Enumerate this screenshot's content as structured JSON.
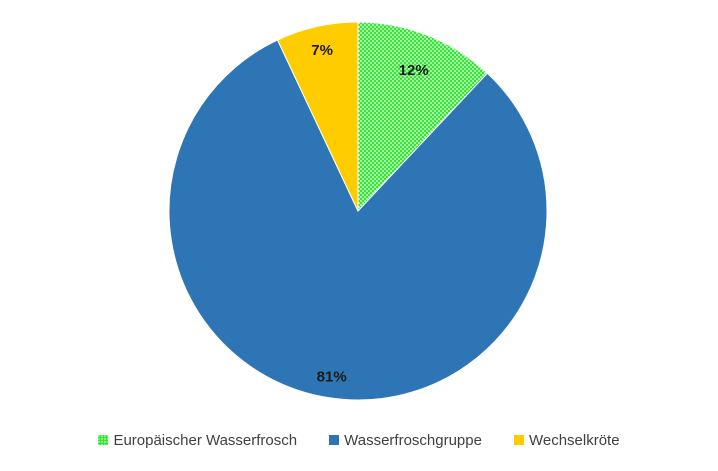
{
  "chart_data": {
    "type": "pie",
    "title": "",
    "categories": [
      "Europäischer Wasserfrosch",
      "Wasserfroschgruppe",
      "Wechselkröte"
    ],
    "values": [
      12,
      81,
      7
    ],
    "labels": [
      "12%",
      "81%",
      "7%"
    ],
    "colors": [
      "#33e633",
      "#2e75b6",
      "#ffcc00"
    ],
    "patterns": [
      "dotted",
      "solid",
      "solid"
    ],
    "start_angle": "12 o'clock",
    "direction": "clockwise",
    "legend_position": "bottom"
  }
}
